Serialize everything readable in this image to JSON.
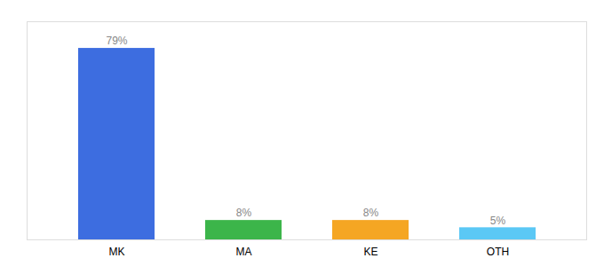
{
  "chart_data": {
    "type": "bar",
    "categories": [
      "MK",
      "MA",
      "KE",
      "OTH"
    ],
    "values": [
      79,
      8,
      8,
      5
    ],
    "value_labels": [
      "79%",
      "8%",
      "8%",
      "5%"
    ],
    "colors": [
      "#3d6de0",
      "#3cb54a",
      "#f5a623",
      "#5bc8f5"
    ],
    "ylim": [
      0,
      90
    ],
    "data_labels": true,
    "tick_labels": "x",
    "grid": false
  }
}
